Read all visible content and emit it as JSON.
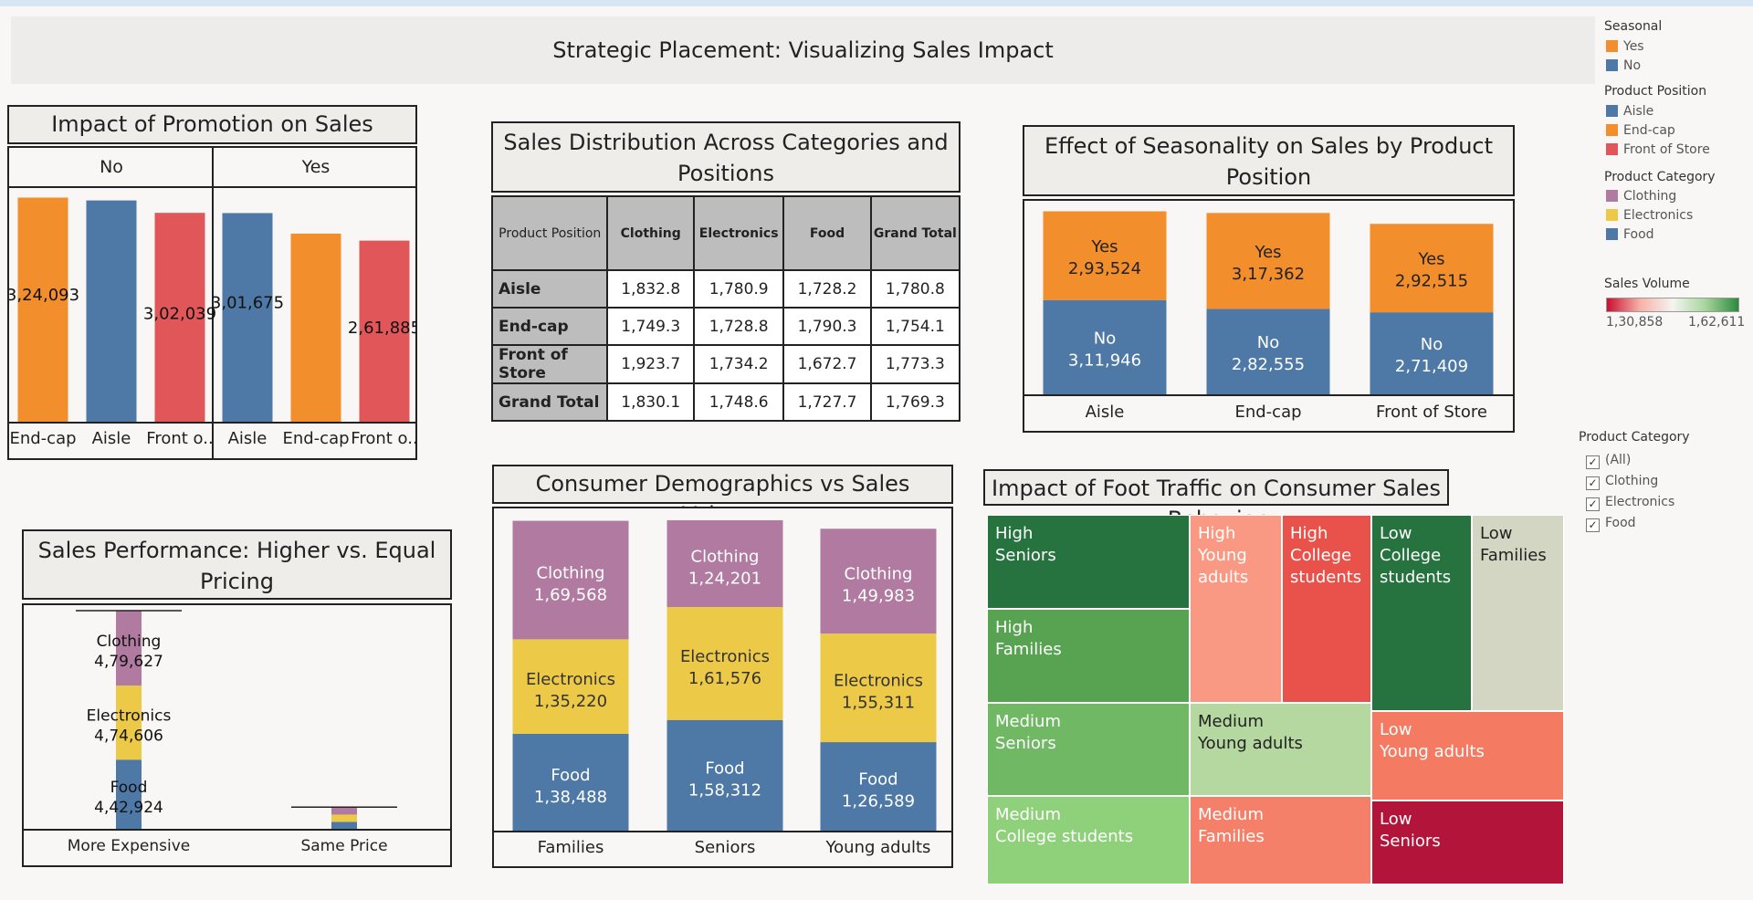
{
  "main_title": "Strategic Placement: Visualizing Sales Impact",
  "colors": {
    "orange": "#f28e2b",
    "blue": "#4e79a7",
    "red": "#e15759",
    "purple": "#b07aa1",
    "yellow": "#edc948"
  },
  "promotion": {
    "title": "Impact of Promotion on Sales",
    "panels": [
      "No",
      "Yes"
    ],
    "chart_data": {
      "type": "bar",
      "groups": [
        {
          "panel": "No",
          "bars": [
            {
              "label": "End-cap",
              "value": 324093,
              "display": "3,24,093",
              "color": "orange"
            },
            {
              "label": "Aisle",
              "value": 320000,
              "display": "",
              "color": "blue"
            },
            {
              "label": "Front o..",
              "value": 302039,
              "display": "3,02,039",
              "color": "red"
            }
          ]
        },
        {
          "panel": "Yes",
          "bars": [
            {
              "label": "Aisle",
              "value": 301675,
              "display": "3,01,675",
              "color": "blue"
            },
            {
              "label": "End-cap",
              "value": 272000,
              "display": "",
              "color": "orange"
            },
            {
              "label": "Front o..",
              "value": 261885,
              "display": "2,61,885",
              "color": "red"
            }
          ]
        }
      ]
    }
  },
  "table": {
    "title": "Sales Distribution Across Categories and Positions",
    "headers": [
      "Product Position",
      "Clothing",
      "Electronics",
      "Food",
      "Grand Total"
    ],
    "rows": [
      [
        "Aisle",
        "1,832.8",
        "1,780.9",
        "1,728.2",
        "1,780.8"
      ],
      [
        "End-cap",
        "1,749.3",
        "1,728.8",
        "1,790.3",
        "1,754.1"
      ],
      [
        "Front of Store",
        "1,923.7",
        "1,734.2",
        "1,672.7",
        "1,773.3"
      ],
      [
        "Grand Total",
        "1,830.1",
        "1,748.6",
        "1,727.7",
        "1,769.3"
      ]
    ]
  },
  "seasonality": {
    "title": "Effect of Seasonality on Sales by Product Position",
    "chart_data": {
      "type": "bar",
      "categories": [
        "Aisle",
        "End-cap",
        "Front of Store"
      ],
      "series": [
        {
          "name": "No",
          "values": [
            311946,
            282555,
            271409
          ],
          "labels": [
            "3,11,946",
            "2,82,555",
            "2,71,409"
          ]
        },
        {
          "name": "Yes",
          "values": [
            293524,
            317362,
            292515
          ],
          "labels": [
            "2,93,524",
            "3,17,362",
            "2,92,515"
          ]
        }
      ]
    }
  },
  "pricing": {
    "title": "Sales Performance: Higher vs. Equal Pricing",
    "chart_data": {
      "type": "bar",
      "categories": [
        "More Expensive",
        "Same Price"
      ],
      "series": [
        {
          "name": "Food",
          "values": [
            442924,
            44000
          ],
          "labels": [
            "4,42,924",
            ""
          ]
        },
        {
          "name": "Electronics",
          "values": [
            474606,
            47000
          ],
          "labels": [
            "4,74,606",
            ""
          ]
        },
        {
          "name": "Clothing",
          "values": [
            479627,
            48000
          ],
          "labels": [
            "4,79,627",
            ""
          ]
        }
      ]
    }
  },
  "demographics": {
    "title": "Consumer Demographics vs Sales Volume",
    "chart_data": {
      "type": "bar",
      "categories": [
        "Families",
        "Seniors",
        "Young adults"
      ],
      "series": [
        {
          "name": "Food",
          "values": [
            138488,
            158312,
            126589
          ],
          "labels": [
            "1,38,488",
            "1,58,312",
            "1,26,589"
          ]
        },
        {
          "name": "Electronics",
          "values": [
            135220,
            161576,
            155311
          ],
          "labels": [
            "1,35,220",
            "1,61,576",
            "1,55,311"
          ]
        },
        {
          "name": "Clothing",
          "values": [
            169568,
            124201,
            149983
          ],
          "labels": [
            "1,69,568",
            "1,24,201",
            "1,49,983"
          ]
        }
      ]
    }
  },
  "foot_traffic": {
    "title": "Impact of Foot Traffic on Consumer Sales Behavior",
    "cells": [
      {
        "line1": "High",
        "line2": "Seniors",
        "color": "#26733f"
      },
      {
        "line1": "High",
        "line2": "Families",
        "color": "#57a352"
      },
      {
        "line1": "High",
        "line2": "Young adults",
        "color": "#fa9983"
      },
      {
        "line1": "High",
        "line2": "College students",
        "color": "#e9524a"
      },
      {
        "line1": "Low",
        "line2": "College students",
        "color": "#26733f"
      },
      {
        "line1": "Low",
        "line2": "Families",
        "color": "#d3d6c2"
      },
      {
        "line1": "Medium",
        "line2": "Seniors",
        "color": "#71b864"
      },
      {
        "line1": "Medium",
        "line2": "Young adults",
        "color": "#b5d7a0"
      },
      {
        "line1": "Low",
        "line2": "Young adults",
        "color": "#f57a62"
      },
      {
        "line1": "Medium",
        "line2": "College students",
        "color": "#8fd07a"
      },
      {
        "line1": "Medium",
        "line2": "Families",
        "color": "#f5806a"
      },
      {
        "line1": "Low",
        "line2": "Seniors",
        "color": "#b3153a"
      }
    ]
  },
  "legends": {
    "seasonal": {
      "title": "Seasonal",
      "items": [
        {
          "label": "Yes",
          "color": "#f28e2b"
        },
        {
          "label": "No",
          "color": "#4e79a7"
        }
      ]
    },
    "position": {
      "title": "Product Position",
      "items": [
        {
          "label": "Aisle",
          "color": "#4e79a7"
        },
        {
          "label": "End-cap",
          "color": "#f28e2b"
        },
        {
          "label": "Front of Store",
          "color": "#e15759"
        }
      ]
    },
    "category": {
      "title": "Product Category",
      "items": [
        {
          "label": "Clothing",
          "color": "#b07aa1"
        },
        {
          "label": "Electronics",
          "color": "#edc948"
        },
        {
          "label": "Food",
          "color": "#4e79a7"
        }
      ]
    },
    "sales_volume": {
      "title": "Sales Volume",
      "min": "1,30,858",
      "max": "1,62,611"
    },
    "filter": {
      "title": "Product Category",
      "items": [
        "(All)",
        "Clothing",
        "Electronics",
        "Food"
      ]
    }
  }
}
